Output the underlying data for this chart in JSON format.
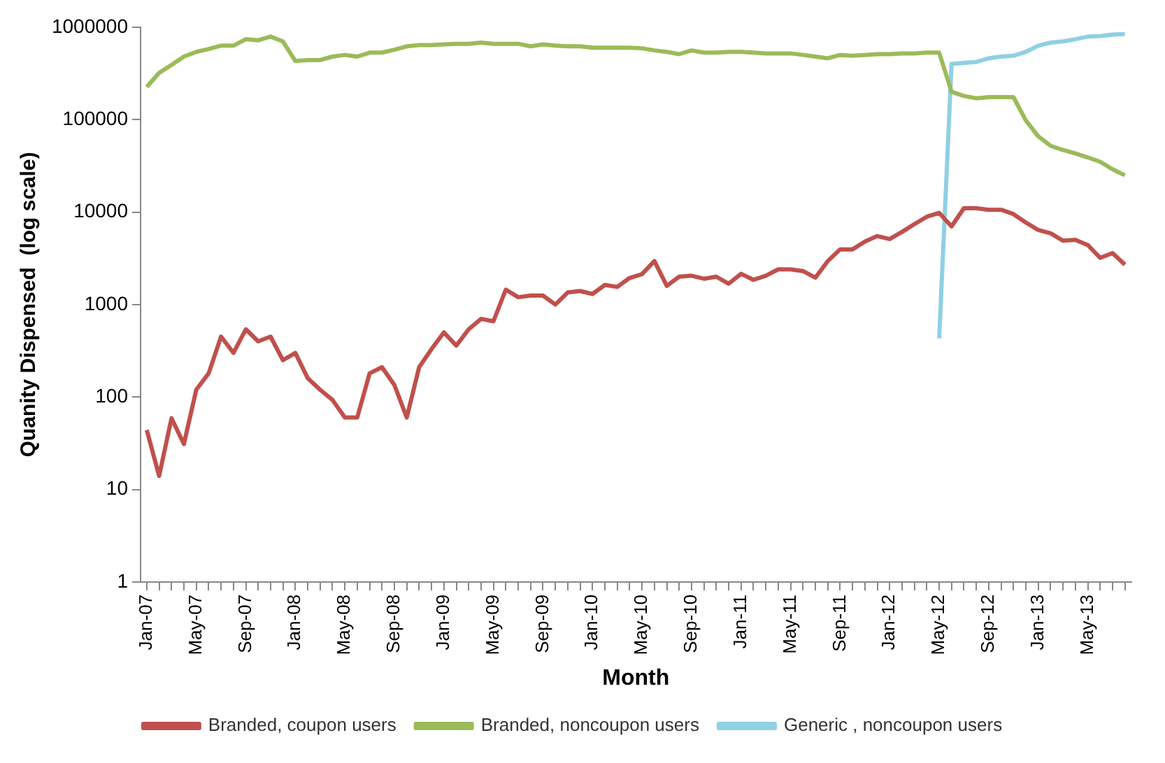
{
  "chart_data": {
    "type": "line",
    "xlabel": "Month",
    "ylabel": "Quanity Dispensed  (log scale)",
    "categories": [
      "Jan-07",
      null,
      null,
      null,
      "May-07",
      null,
      null,
      null,
      "Sep-07",
      null,
      null,
      null,
      "Jan-08",
      null,
      null,
      null,
      "May-08",
      null,
      null,
      null,
      "Sep-08",
      null,
      null,
      null,
      "Jan-09",
      null,
      null,
      null,
      "May-09",
      null,
      null,
      null,
      "Sep-09",
      null,
      null,
      null,
      "Jan-10",
      null,
      null,
      null,
      "May-10",
      null,
      null,
      null,
      "Sep-10",
      null,
      null,
      null,
      "Jan-11",
      null,
      null,
      null,
      "May-11",
      null,
      null,
      null,
      "Sep-11",
      null,
      null,
      null,
      "Jan-12",
      null,
      null,
      null,
      "May-12",
      null,
      null,
      null,
      "Sep-12",
      null,
      null,
      null,
      "Jan-13",
      null,
      null,
      null,
      "May-13",
      null,
      null,
      null
    ],
    "series": [
      {
        "name": "Branded, coupon users",
        "color": "#c0504d",
        "values": [
          44,
          14,
          59,
          31,
          120,
          180,
          450,
          300,
          540,
          400,
          450,
          250,
          300,
          160,
          120,
          93,
          60,
          60,
          180,
          210,
          135,
          60,
          210,
          330,
          500,
          360,
          540,
          700,
          660,
          1450,
          1200,
          1250,
          1250,
          1000,
          1350,
          1400,
          1300,
          1630,
          1550,
          1940,
          2130,
          2950,
          1590,
          2000,
          2050,
          1900,
          2000,
          1680,
          2150,
          1850,
          2050,
          2400,
          2400,
          2300,
          1950,
          2950,
          3950,
          3950,
          4800,
          5500,
          5100,
          6100,
          7400,
          8900,
          9800,
          7000,
          11000,
          11000,
          10600,
          10600,
          9500,
          7700,
          6400,
          5900,
          4900,
          5000,
          4400,
          3200,
          3600,
          2700
        ]
      },
      {
        "name": "Branded, noncoupon users",
        "color": "#9bbb59",
        "values": [
          225000,
          320000,
          390000,
          480000,
          540000,
          580000,
          630000,
          630000,
          740000,
          720000,
          790000,
          700000,
          430000,
          440000,
          440000,
          480000,
          500000,
          480000,
          530000,
          530000,
          570000,
          620000,
          640000,
          640000,
          650000,
          660000,
          660000,
          680000,
          660000,
          660000,
          660000,
          620000,
          650000,
          630000,
          620000,
          620000,
          600000,
          600000,
          600000,
          600000,
          590000,
          560000,
          540000,
          510000,
          560000,
          530000,
          530000,
          540000,
          540000,
          530000,
          520000,
          520000,
          520000,
          500000,
          480000,
          460000,
          500000,
          490000,
          500000,
          510000,
          510000,
          520000,
          520000,
          530000,
          530000,
          200000,
          180000,
          170000,
          175000,
          175000,
          175000,
          98000,
          66000,
          52000,
          47000,
          43000,
          39000,
          35000,
          29000,
          25000
        ]
      },
      {
        "name": "Generic , noncoupon users",
        "color": "#8fd0e3",
        "values": [
          null,
          null,
          null,
          null,
          null,
          null,
          null,
          null,
          null,
          null,
          null,
          null,
          null,
          null,
          null,
          null,
          null,
          null,
          null,
          null,
          null,
          null,
          null,
          null,
          null,
          null,
          null,
          null,
          null,
          null,
          null,
          null,
          null,
          null,
          null,
          null,
          null,
          null,
          null,
          null,
          null,
          null,
          null,
          null,
          null,
          null,
          null,
          null,
          null,
          null,
          null,
          null,
          null,
          null,
          null,
          null,
          null,
          null,
          null,
          null,
          null,
          null,
          null,
          null,
          430,
          400000,
          410000,
          420000,
          460000,
          480000,
          490000,
          540000,
          630000,
          680000,
          700000,
          740000,
          790000,
          800000,
          830000,
          840000
        ]
      }
    ],
    "log": "y",
    "ylim": [
      1,
      1000000
    ],
    "yticks": [
      1,
      10,
      100,
      1000,
      10000,
      100000,
      1000000
    ],
    "legend": "bottom",
    "marker": "none",
    "line_style": "solid"
  }
}
